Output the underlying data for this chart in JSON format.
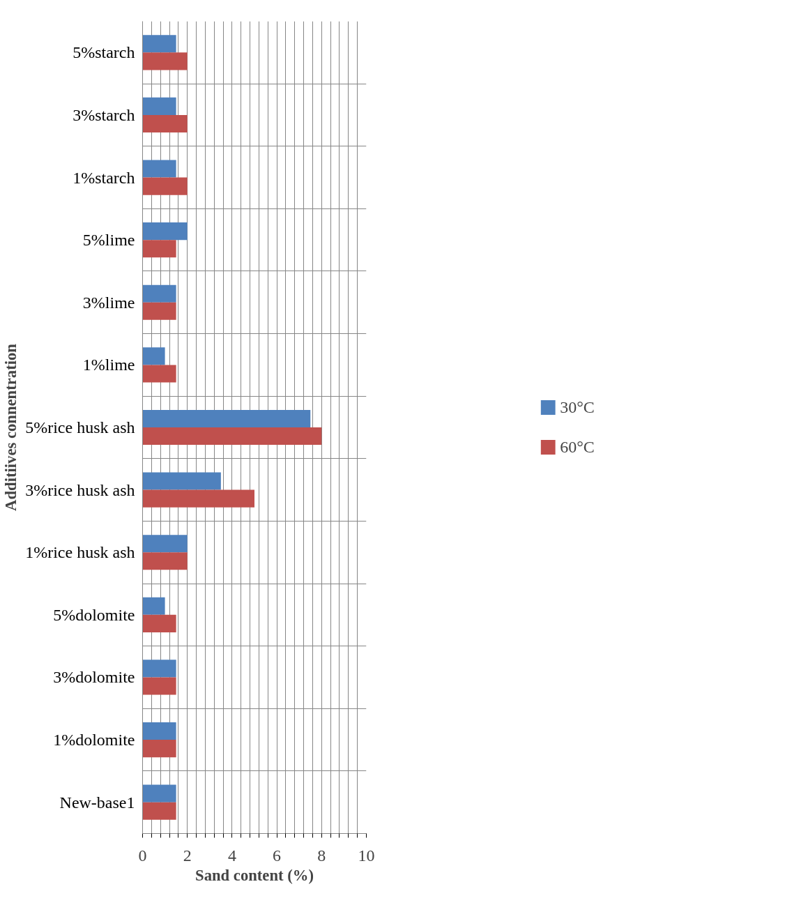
{
  "chart_data": {
    "type": "bar",
    "orientation": "horizontal",
    "xlabel": "Sand content (%)",
    "ylabel": "Additiives connentration",
    "categories": [
      "5%starch",
      "3%starch",
      "1%starch",
      "5%lime",
      "3%lime",
      "1%lime",
      "5%rice husk ash",
      "3%rice husk ash",
      "1%rice husk ash",
      "5%dolomite",
      "3%dolomite",
      "1%dolomite",
      "New-base1"
    ],
    "series": [
      {
        "name": "30°C",
        "color": "#4f81bd",
        "values": [
          1.5,
          1.5,
          1.5,
          2,
          1.5,
          1,
          7.5,
          3.5,
          2,
          1,
          1.5,
          1.5,
          1.5
        ]
      },
      {
        "name": "60°C",
        "color": "#c0504d",
        "values": [
          2,
          2,
          2,
          1.5,
          1.5,
          1.5,
          8,
          5,
          2,
          1.5,
          1.5,
          1.5,
          1.5
        ]
      }
    ],
    "xlim": [
      0,
      10
    ],
    "xticks": [
      0,
      {
        "value": 0.4,
        "label": null
      },
      {
        "value": 0.8,
        "label": null
      },
      {
        "value": 1.2,
        "label": null
      },
      {
        "value": 1.6,
        "label": null
      },
      2,
      {
        "value": 2.4,
        "label": null
      },
      {
        "value": 2.8,
        "label": null
      },
      {
        "value": 3.2,
        "label": null
      },
      {
        "value": 3.6,
        "label": null
      },
      4,
      {
        "value": 4.4,
        "label": null
      },
      {
        "value": 4.8,
        "label": null
      },
      {
        "value": 5.2,
        "label": null
      },
      {
        "value": 5.6,
        "label": null
      },
      6,
      {
        "value": 6.4,
        "label": null
      },
      {
        "value": 6.8,
        "label": null
      },
      {
        "value": 7.2,
        "label": null
      },
      {
        "value": 7.6,
        "label": null
      },
      8,
      {
        "value": 8.4,
        "label": null
      },
      {
        "value": 8.8,
        "label": null
      },
      {
        "value": 9.2,
        "label": null
      },
      {
        "value": 9.6,
        "label": null
      },
      10
    ],
    "grid": true,
    "legend": "right"
  }
}
